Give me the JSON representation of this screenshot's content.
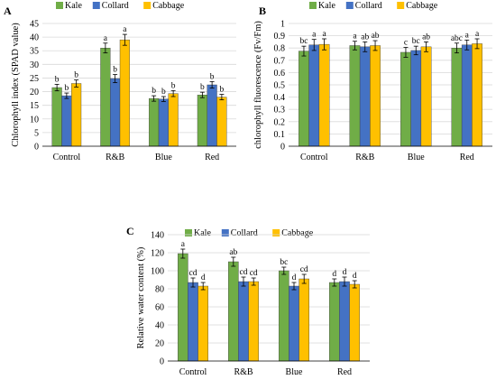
{
  "figure": {
    "colors": {
      "Kale": "#70ad47",
      "Collard": "#4472c4",
      "Cabbage": "#ffc000",
      "grid": "#d9d9d9",
      "axis": "#000000"
    }
  },
  "chart_data": [
    {
      "panel": "A",
      "type": "bar",
      "ylabel": "Chlorophyll index (SPAD value)",
      "xlabel": "",
      "ylim": [
        0,
        45
      ],
      "yticks": [
        0,
        5,
        10,
        15,
        20,
        25,
        30,
        35,
        40,
        45
      ],
      "ytick_labels": [
        "0",
        "5",
        "10",
        "15",
        "20",
        "25",
        "30",
        "35",
        "40",
        "45"
      ],
      "grid": true,
      "legend": "top",
      "categories": [
        "Control",
        "R&B",
        "Blue",
        "Red"
      ],
      "series": [
        {
          "name": "Kale",
          "values": [
            21.5,
            36.0,
            17.5,
            18.8
          ],
          "errors": [
            1.2,
            1.8,
            1.0,
            1.0
          ],
          "letters": [
            "b",
            "a",
            "b",
            "b"
          ]
        },
        {
          "name": "Collard",
          "values": [
            18.5,
            24.8,
            17.3,
            22.5
          ],
          "errors": [
            1.0,
            1.5,
            0.9,
            1.2
          ],
          "letters": [
            "b",
            "b",
            "b",
            "b"
          ]
        },
        {
          "name": "Cabbage",
          "values": [
            23.0,
            39.0,
            19.3,
            18.0
          ],
          "errors": [
            1.3,
            2.0,
            1.1,
            1.0
          ],
          "letters": [
            "b",
            "a",
            "b",
            "b"
          ]
        }
      ]
    },
    {
      "panel": "B",
      "type": "bar",
      "ylabel": "chlorophyll fluorescence (Fv/Fm)",
      "xlabel": "",
      "ylim": [
        0,
        1
      ],
      "yticks": [
        0,
        0.1,
        0.2,
        0.3,
        0.4,
        0.5,
        0.6,
        0.7,
        0.8,
        0.9,
        1
      ],
      "ytick_labels": [
        "0",
        "0.1",
        "0.2",
        "0.3",
        "0.4",
        "0.5",
        "0.6",
        "0.7",
        "0.8",
        "0.9",
        "1"
      ],
      "grid": true,
      "legend": "top",
      "categories": [
        "Control",
        "R&B",
        "Blue",
        "Red"
      ],
      "series": [
        {
          "name": "Kale",
          "values": [
            0.775,
            0.82,
            0.765,
            0.8
          ],
          "errors": [
            0.04,
            0.035,
            0.04,
            0.04
          ],
          "letters": [
            "bc",
            "a",
            "c",
            "abc"
          ]
        },
        {
          "name": "Collard",
          "values": [
            0.825,
            0.81,
            0.78,
            0.825
          ],
          "errors": [
            0.045,
            0.04,
            0.035,
            0.04
          ],
          "letters": [
            "a",
            "ab",
            "bc",
            "a"
          ]
        },
        {
          "name": "Cabbage",
          "values": [
            0.83,
            0.82,
            0.81,
            0.835
          ],
          "errors": [
            0.045,
            0.04,
            0.04,
            0.04
          ],
          "letters": [
            "a",
            "ab",
            "ab",
            "a"
          ]
        }
      ]
    },
    {
      "panel": "C",
      "type": "bar",
      "ylabel": "Relative water content (%)",
      "xlabel": "",
      "ylim": [
        0,
        140
      ],
      "yticks": [
        0,
        20,
        40,
        60,
        80,
        100,
        120,
        140
      ],
      "ytick_labels": [
        "0",
        "20",
        "40",
        "60",
        "80",
        "100",
        "120",
        "140"
      ],
      "grid": true,
      "legend": "top",
      "categories": [
        "Control",
        "R&B",
        "Blue",
        "Red"
      ],
      "series": [
        {
          "name": "Kale",
          "values": [
            119,
            110,
            100,
            87
          ],
          "errors": [
            5,
            5,
            4,
            4
          ],
          "letters": [
            "a",
            "ab",
            "bc",
            "d"
          ]
        },
        {
          "name": "Collard",
          "values": [
            87,
            88,
            83,
            88
          ],
          "errors": [
            5,
            5,
            4,
            5
          ],
          "letters": [
            "cd",
            "cd",
            "d",
            "d"
          ]
        },
        {
          "name": "Cabbage",
          "values": [
            83,
            88,
            91,
            85
          ],
          "errors": [
            4,
            4,
            5,
            4
          ],
          "letters": [
            "d",
            "cd",
            "cd",
            "d"
          ]
        }
      ]
    }
  ]
}
